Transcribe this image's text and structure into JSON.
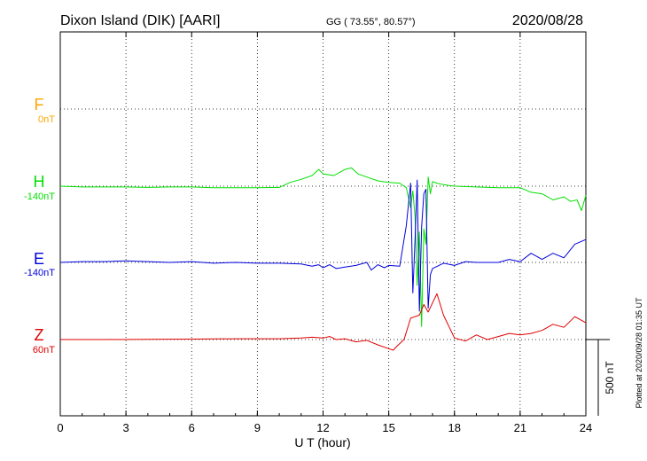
{
  "header": {
    "station": "Dixon Island (DIK)  [AARI]",
    "coords": "GG ( 73.55°,  80.57°)",
    "date": "2020/08/28"
  },
  "footer": {
    "plotted": "Plotted at 2020/09/28 01:35 UT"
  },
  "chart_data": {
    "type": "line",
    "title": "",
    "xlabel": "U T (hour)",
    "ylabel": "",
    "xlim": [
      0,
      24
    ],
    "x_ticks": [
      "0",
      "3",
      "6",
      "9",
      "12",
      "15",
      "18",
      "21",
      "24"
    ],
    "grid": true,
    "scale_bar_label": "500 nT",
    "series": [
      {
        "name": "F",
        "offset_label": "0nT",
        "color": "#ffa500",
        "x": [],
        "y": []
      },
      {
        "name": "H",
        "offset_label": "-140nT",
        "color": "#00e000",
        "x": [
          0,
          1,
          2,
          3,
          4,
          5,
          6,
          7,
          8,
          9,
          10,
          10.5,
          11,
          11.5,
          11.8,
          12,
          12.5,
          13,
          13.3,
          13.6,
          14,
          14.5,
          15,
          15.5,
          15.8,
          16.0,
          16.1,
          16.2,
          16.3,
          16.4,
          16.5,
          16.6,
          16.7,
          16.8,
          16.9,
          17.0,
          17.2,
          17.5,
          18,
          19,
          20,
          21,
          21.5,
          22,
          22.5,
          23,
          23.3,
          23.6,
          23.8,
          24
        ],
        "y": [
          0,
          -5,
          -5,
          -5,
          -8,
          -5,
          -5,
          -10,
          -10,
          -10,
          -8,
          25,
          45,
          70,
          110,
          80,
          70,
          110,
          120,
          80,
          60,
          35,
          25,
          20,
          -10,
          -140,
          -30,
          -200,
          -650,
          -300,
          -920,
          -280,
          -380,
          60,
          -50,
          30,
          20,
          10,
          0,
          -5,
          -10,
          -10,
          -40,
          -50,
          -90,
          -70,
          -100,
          -90,
          -160,
          -60
        ]
      },
      {
        "name": "E",
        "offset_label": "-140nT",
        "color": "#0000dd",
        "x": [
          0,
          1,
          2,
          3,
          4,
          5,
          6,
          7,
          8,
          9,
          10,
          11,
          11.5,
          11.8,
          12,
          12.3,
          12.6,
          13,
          13.5,
          14,
          14.2,
          14.5,
          14.8,
          15,
          15.5,
          15.8,
          16.0,
          16.1,
          16.2,
          16.3,
          16.4,
          16.5,
          16.6,
          16.7,
          16.8,
          16.9,
          17,
          17.5,
          18,
          18.5,
          19,
          20,
          20.5,
          21,
          21.5,
          22,
          22.5,
          23,
          23.5,
          24
        ],
        "y": [
          0,
          5,
          5,
          10,
          5,
          0,
          5,
          -5,
          0,
          -5,
          -5,
          -10,
          -25,
          -15,
          -35,
          -15,
          -40,
          -30,
          -20,
          0,
          -50,
          -15,
          -35,
          -20,
          -25,
          240,
          520,
          -200,
          150,
          540,
          -320,
          230,
          450,
          480,
          -300,
          -80,
          -40,
          -5,
          -20,
          5,
          0,
          0,
          20,
          5,
          60,
          20,
          60,
          30,
          120,
          150
        ]
      },
      {
        "name": "Z",
        "offset_label": "60nT",
        "color": "#e00000",
        "x": [
          0,
          2,
          4,
          6,
          8,
          10,
          11,
          11.5,
          12,
          12.3,
          12.6,
          13,
          13.5,
          14,
          14.5,
          15,
          15.2,
          15.4,
          15.7,
          16,
          16.2,
          16.4,
          16.6,
          16.8,
          17,
          17.2,
          17.5,
          18,
          18.5,
          19,
          19.5,
          20,
          20.5,
          21,
          21.5,
          22,
          22.5,
          23,
          23.5,
          24
        ],
        "y": [
          0,
          0,
          2,
          3,
          5,
          5,
          10,
          15,
          10,
          20,
          0,
          5,
          -15,
          -5,
          -35,
          -60,
          -70,
          -40,
          0,
          140,
          150,
          160,
          230,
          180,
          240,
          300,
          160,
          10,
          -10,
          30,
          0,
          20,
          40,
          30,
          40,
          60,
          100,
          80,
          150,
          110
        ]
      }
    ]
  }
}
